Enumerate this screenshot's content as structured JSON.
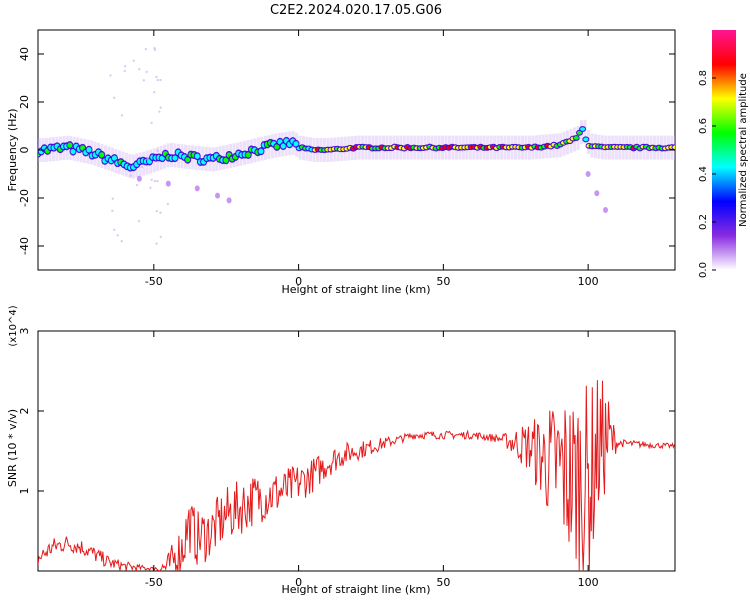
{
  "title": "C2E2.2024.020.17.05.G06",
  "chart_data": [
    {
      "type": "heatmap",
      "xlabel": "Height of straight line (km)",
      "ylabel": "Frequency (Hz)",
      "xlim": [
        -90,
        130
      ],
      "ylim": [
        -50,
        50
      ],
      "xticks": [
        -50,
        0,
        50,
        100
      ],
      "yticks": [
        40,
        20,
        0,
        -20,
        -40
      ],
      "colorbar": {
        "label": "Normalized spectral amplitude",
        "range": [
          0.0,
          1.0
        ],
        "ticks": [
          "0.0",
          "0.2",
          "0.4",
          "0.6",
          "0.8"
        ],
        "colormap": [
          "#ffffff",
          "#8a2be2",
          "#0000ff",
          "#00ffff",
          "#00ff00",
          "#ffff00",
          "#ff0000",
          "#ff1493"
        ]
      },
      "ridge": [
        {
          "x": -88,
          "y": 0
        },
        {
          "x": -80,
          "y": 1
        },
        {
          "x": -72,
          "y": -1
        },
        {
          "x": -65,
          "y": -4
        },
        {
          "x": -58,
          "y": -7
        },
        {
          "x": -52,
          "y": -5
        },
        {
          "x": -45,
          "y": -2
        },
        {
          "x": -38,
          "y": -3
        },
        {
          "x": -30,
          "y": -4
        },
        {
          "x": -22,
          "y": -2
        },
        {
          "x": -15,
          "y": 0
        },
        {
          "x": -8,
          "y": 2
        },
        {
          "x": -2,
          "y": 3
        },
        {
          "x": 0,
          "y": 1
        },
        {
          "x": 5,
          "y": 0
        },
        {
          "x": 10,
          "y": 0
        },
        {
          "x": 20,
          "y": 1
        },
        {
          "x": 40,
          "y": 1
        },
        {
          "x": 60,
          "y": 1
        },
        {
          "x": 80,
          "y": 1
        },
        {
          "x": 90,
          "y": 2
        },
        {
          "x": 96,
          "y": 5
        },
        {
          "x": 98,
          "y": 9
        },
        {
          "x": 100,
          "y": 2
        },
        {
          "x": 105,
          "y": 1
        },
        {
          "x": 115,
          "y": 1
        },
        {
          "x": 130,
          "y": 1
        }
      ],
      "secondary_track": [
        {
          "x": -55,
          "y": -12
        },
        {
          "x": -45,
          "y": -14
        },
        {
          "x": -35,
          "y": -16
        },
        {
          "x": -28,
          "y": -19
        },
        {
          "x": -24,
          "y": -21
        },
        {
          "x": 100,
          "y": -10
        },
        {
          "x": 103,
          "y": -18
        },
        {
          "x": 106,
          "y": -25
        }
      ]
    },
    {
      "type": "line",
      "xlabel": "Height of straight line (km)",
      "ylabel": "SNR (10 * v/v)",
      "y_multiplier": "(x10^4)",
      "xlim": [
        -90,
        130
      ],
      "ylim": [
        0,
        3
      ],
      "xticks": [
        -50,
        0,
        50,
        100
      ],
      "yticks": [
        1,
        2,
        3
      ],
      "series": [
        {
          "color": "#e41a1c",
          "points": [
            [
              -90,
              0.15
            ],
            [
              -85,
              0.3
            ],
            [
              -80,
              0.35
            ],
            [
              -75,
              0.3
            ],
            [
              -70,
              0.2
            ],
            [
              -65,
              0.1
            ],
            [
              -60,
              0.06
            ],
            [
              -55,
              0.04
            ],
            [
              -50,
              0.03
            ],
            [
              -45,
              0.05
            ],
            [
              -40,
              0.3
            ],
            [
              -38,
              0.6
            ],
            [
              -35,
              0.4
            ],
            [
              -30,
              0.5
            ],
            [
              -25,
              0.7
            ],
            [
              -20,
              0.8
            ],
            [
              -15,
              0.9
            ],
            [
              -10,
              0.95
            ],
            [
              -5,
              1.0
            ],
            [
              0,
              1.1
            ],
            [
              5,
              1.2
            ],
            [
              10,
              1.35
            ],
            [
              15,
              1.45
            ],
            [
              20,
              1.5
            ],
            [
              25,
              1.55
            ],
            [
              30,
              1.6
            ],
            [
              35,
              1.65
            ],
            [
              40,
              1.7
            ],
            [
              50,
              1.7
            ],
            [
              60,
              1.7
            ],
            [
              70,
              1.65
            ],
            [
              75,
              1.6
            ],
            [
              80,
              1.55
            ],
            [
              85,
              1.4
            ],
            [
              90,
              1.3
            ],
            [
              95,
              1.1
            ],
            [
              98,
              1.2
            ],
            [
              100,
              1.0
            ],
            [
              103,
              1.5
            ],
            [
              106,
              1.65
            ],
            [
              110,
              1.6
            ],
            [
              120,
              1.58
            ],
            [
              130,
              1.56
            ]
          ],
          "noise_amplitude": [
            [
              -90,
              0.12
            ],
            [
              -70,
              0.1
            ],
            [
              -50,
              0.02
            ],
            [
              -40,
              0.35
            ],
            [
              -20,
              0.35
            ],
            [
              0,
              0.25
            ],
            [
              20,
              0.12
            ],
            [
              35,
              0.05
            ],
            [
              70,
              0.05
            ],
            [
              80,
              0.35
            ],
            [
              95,
              1.2
            ],
            [
              100,
              1.3
            ],
            [
              107,
              0.6
            ],
            [
              110,
              0.05
            ],
            [
              130,
              0.03
            ]
          ]
        }
      ]
    }
  ]
}
